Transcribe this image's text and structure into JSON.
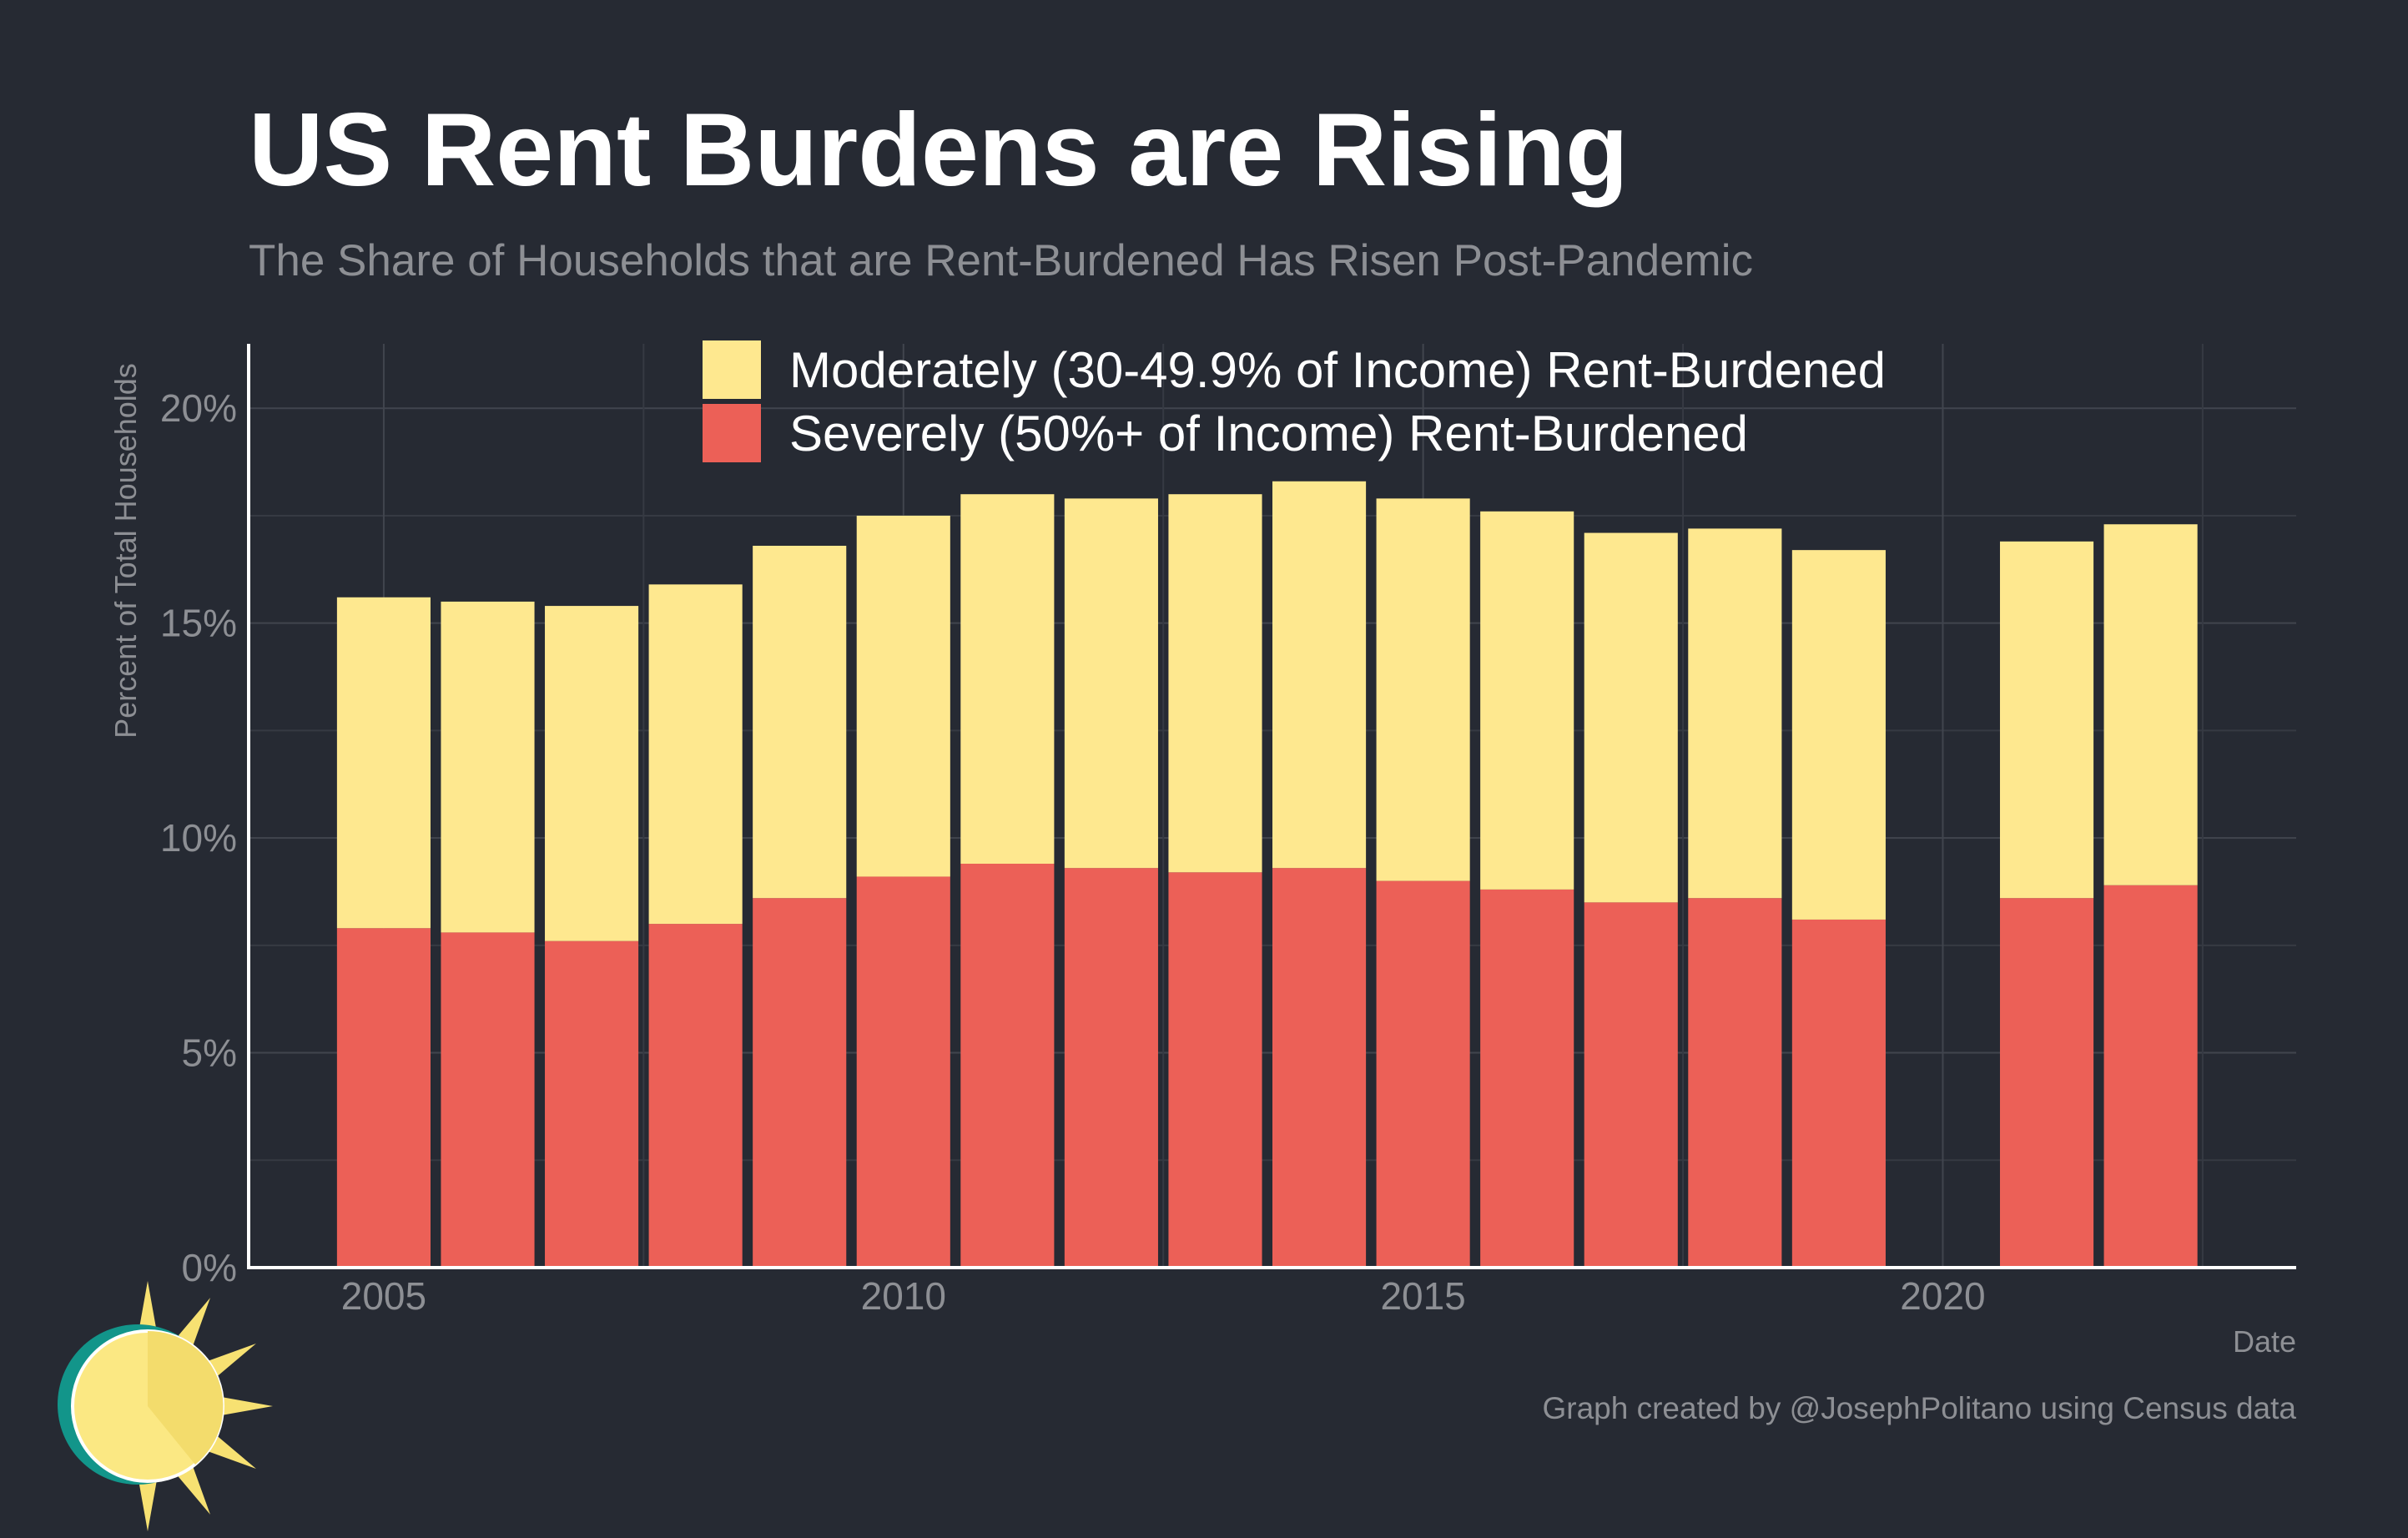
{
  "title": "US Rent Burdens are Rising",
  "subtitle": "The Share of Households that are Rent-Burdened Has Risen Post-Pandemic",
  "caption": "Graph created by @JosephPolitano using Census data",
  "logo_icon": "sun-logo-icon",
  "colors": {
    "background": "#262a33",
    "moderate": "#fee88f",
    "severe": "#ec6057",
    "muted_text": "#8d8f94",
    "sun_outer": "#12958a",
    "sun_face": "#fbe883",
    "sun_rays": "#f7e172"
  },
  "chart_data": {
    "type": "bar",
    "stacked": true,
    "title": "US Rent Burdens are Rising",
    "subtitle": "The Share of Households that are Rent-Burdened Has Risen Post-Pandemic",
    "xlabel": "Date",
    "ylabel": "Percent of Total Households",
    "x": [
      2005,
      2006,
      2007,
      2008,
      2009,
      2010,
      2011,
      2012,
      2013,
      2014,
      2015,
      2016,
      2017,
      2018,
      2019,
      2021,
      2022
    ],
    "xlim": [
      2003.7,
      2023.4
    ],
    "ylim": [
      0,
      21.5
    ],
    "x_ticks": [
      2005,
      2010,
      2015,
      2020
    ],
    "x_tick_labels": [
      "2005",
      "2010",
      "2015",
      "2020"
    ],
    "y_ticks": [
      0,
      5,
      10,
      15,
      20
    ],
    "y_tick_labels": [
      "0%",
      "5%",
      "10%",
      "15%",
      "20%"
    ],
    "grid": true,
    "legend_position": "top-center",
    "series": [
      {
        "name": "Severely (50%+ of Income) Rent-Burdened",
        "color": "#ec6057",
        "values": [
          7.9,
          7.8,
          7.6,
          8.0,
          8.6,
          9.1,
          9.4,
          9.3,
          9.2,
          9.3,
          9.0,
          8.8,
          8.5,
          8.6,
          8.1,
          8.6,
          8.9
        ]
      },
      {
        "name": "Moderately (30-49.9% of Income) Rent-Burdened",
        "color": "#fee88f",
        "values": [
          7.7,
          7.7,
          7.8,
          7.9,
          8.2,
          8.4,
          8.6,
          8.6,
          8.8,
          9.0,
          8.9,
          8.8,
          8.6,
          8.6,
          8.6,
          8.3,
          8.4
        ]
      }
    ],
    "legend_order": [
      "Moderately (30-49.9% of Income) Rent-Burdened",
      "Severely (50%+ of Income) Rent-Burdened"
    ]
  }
}
